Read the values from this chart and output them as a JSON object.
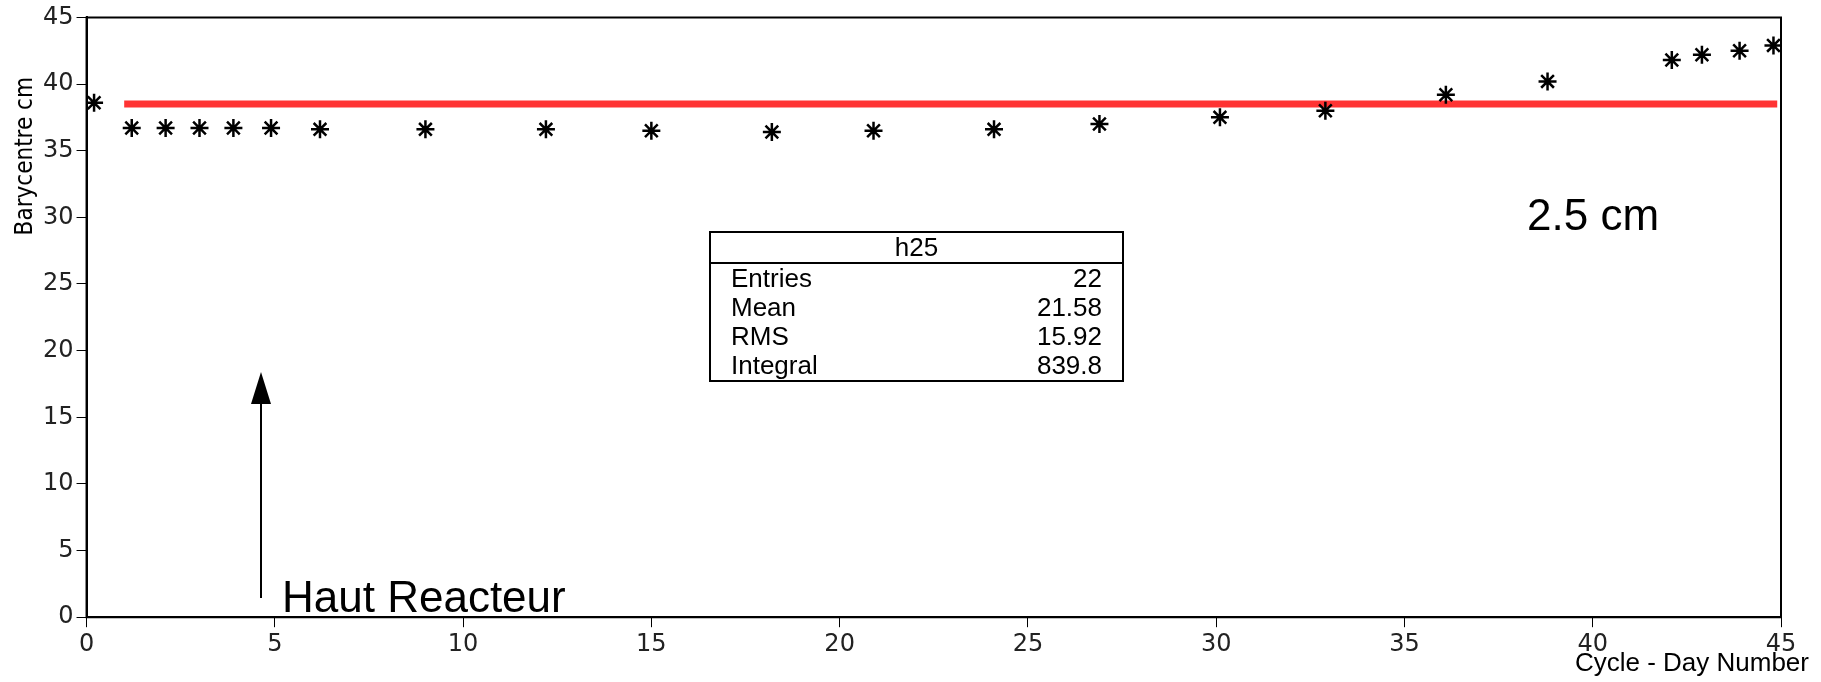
{
  "chart_data": {
    "type": "scatter",
    "xlabel": "Cycle - Day Number",
    "ylabel": "Barycentre cm",
    "xlim": [
      0,
      45
    ],
    "xticks": [
      0,
      5,
      10,
      15,
      20,
      25,
      30,
      35,
      40,
      45
    ],
    "ylim": [
      0,
      45
    ],
    "yticks": [
      0,
      5,
      10,
      15,
      20,
      25,
      30,
      35,
      40,
      45
    ],
    "grid": false,
    "legend": false,
    "marker": "cross",
    "series": [
      {
        "color": "#000000",
        "x": [
          0.2,
          1.2,
          2.1,
          3.0,
          3.9,
          4.9,
          6.2,
          9.0,
          12.2,
          15.0,
          18.2,
          20.9,
          24.1,
          26.9,
          30.1,
          32.9,
          36.1,
          38.8,
          42.1,
          42.9,
          43.9,
          44.8
        ],
        "values": [
          38.6,
          36.7,
          36.7,
          36.7,
          36.7,
          36.7,
          36.6,
          36.6,
          36.6,
          36.5,
          36.4,
          36.5,
          36.6,
          37.0,
          37.5,
          38.0,
          39.2,
          40.2,
          41.8,
          42.2,
          42.5,
          42.9
        ]
      },
      {
        "type": "line",
        "marker": "none",
        "color": "#ff3333",
        "x": [
          1.0,
          44.9
        ],
        "values": [
          38.5,
          38.5
        ]
      }
    ],
    "annotations": [
      "2.5 cm",
      "Haut Reacteur",
      "h25",
      "Entries",
      "22",
      "Mean",
      "21.58",
      "RMS",
      "15.92",
      "Integral",
      "839.8"
    ]
  }
}
